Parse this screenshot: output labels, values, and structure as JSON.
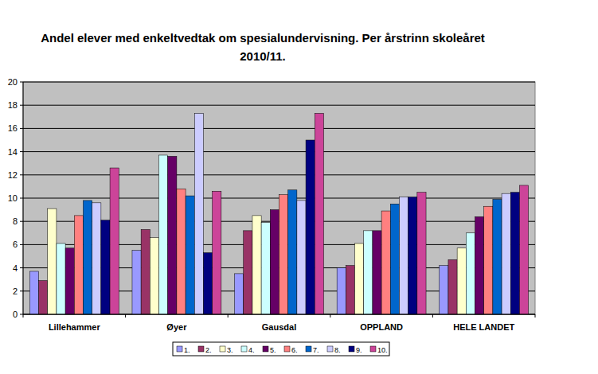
{
  "chart_data": {
    "type": "bar",
    "title": "Andel elever med enkeltvedtak om spesialundervisning. Per årstrinn skoleåret 2010/11.",
    "categories": [
      "Lillehammer",
      "Øyer",
      "Gausdal",
      "OPPLAND",
      "HELE LANDET"
    ],
    "series": [
      {
        "name": "1.",
        "color": "#9999ff",
        "values": [
          3.7,
          5.5,
          3.5,
          4.0,
          4.2
        ]
      },
      {
        "name": "2.",
        "color": "#993366",
        "values": [
          2.9,
          7.3,
          7.2,
          4.2,
          4.7
        ]
      },
      {
        "name": "3.",
        "color": "#ffffcc",
        "values": [
          9.1,
          6.6,
          8.5,
          6.1,
          5.7
        ]
      },
      {
        "name": "4.",
        "color": "#ccffff",
        "values": [
          6.1,
          13.7,
          7.9,
          7.2,
          7.0
        ]
      },
      {
        "name": "5.",
        "color": "#660066",
        "values": [
          5.7,
          13.6,
          9.0,
          7.2,
          8.4
        ]
      },
      {
        "name": "6.",
        "color": "#ff8080",
        "values": [
          8.5,
          10.8,
          10.3,
          8.9,
          9.3
        ]
      },
      {
        "name": "7.",
        "color": "#0066cc",
        "values": [
          9.8,
          10.2,
          10.7,
          9.5,
          9.9
        ]
      },
      {
        "name": "8.",
        "color": "#ccccff",
        "values": [
          9.6,
          17.3,
          9.8,
          10.1,
          10.4
        ]
      },
      {
        "name": "9.",
        "color": "#000080",
        "values": [
          8.1,
          5.3,
          15.0,
          10.1,
          10.5
        ]
      },
      {
        "name": "10.",
        "color": "#cc4499",
        "values": [
          12.6,
          10.6,
          17.3,
          10.5,
          11.1
        ]
      }
    ],
    "ylim": [
      0,
      20
    ],
    "yticks": [
      0,
      2,
      4,
      6,
      8,
      10,
      12,
      14,
      16,
      18,
      20
    ],
    "grid": true,
    "legend": "bottom"
  }
}
